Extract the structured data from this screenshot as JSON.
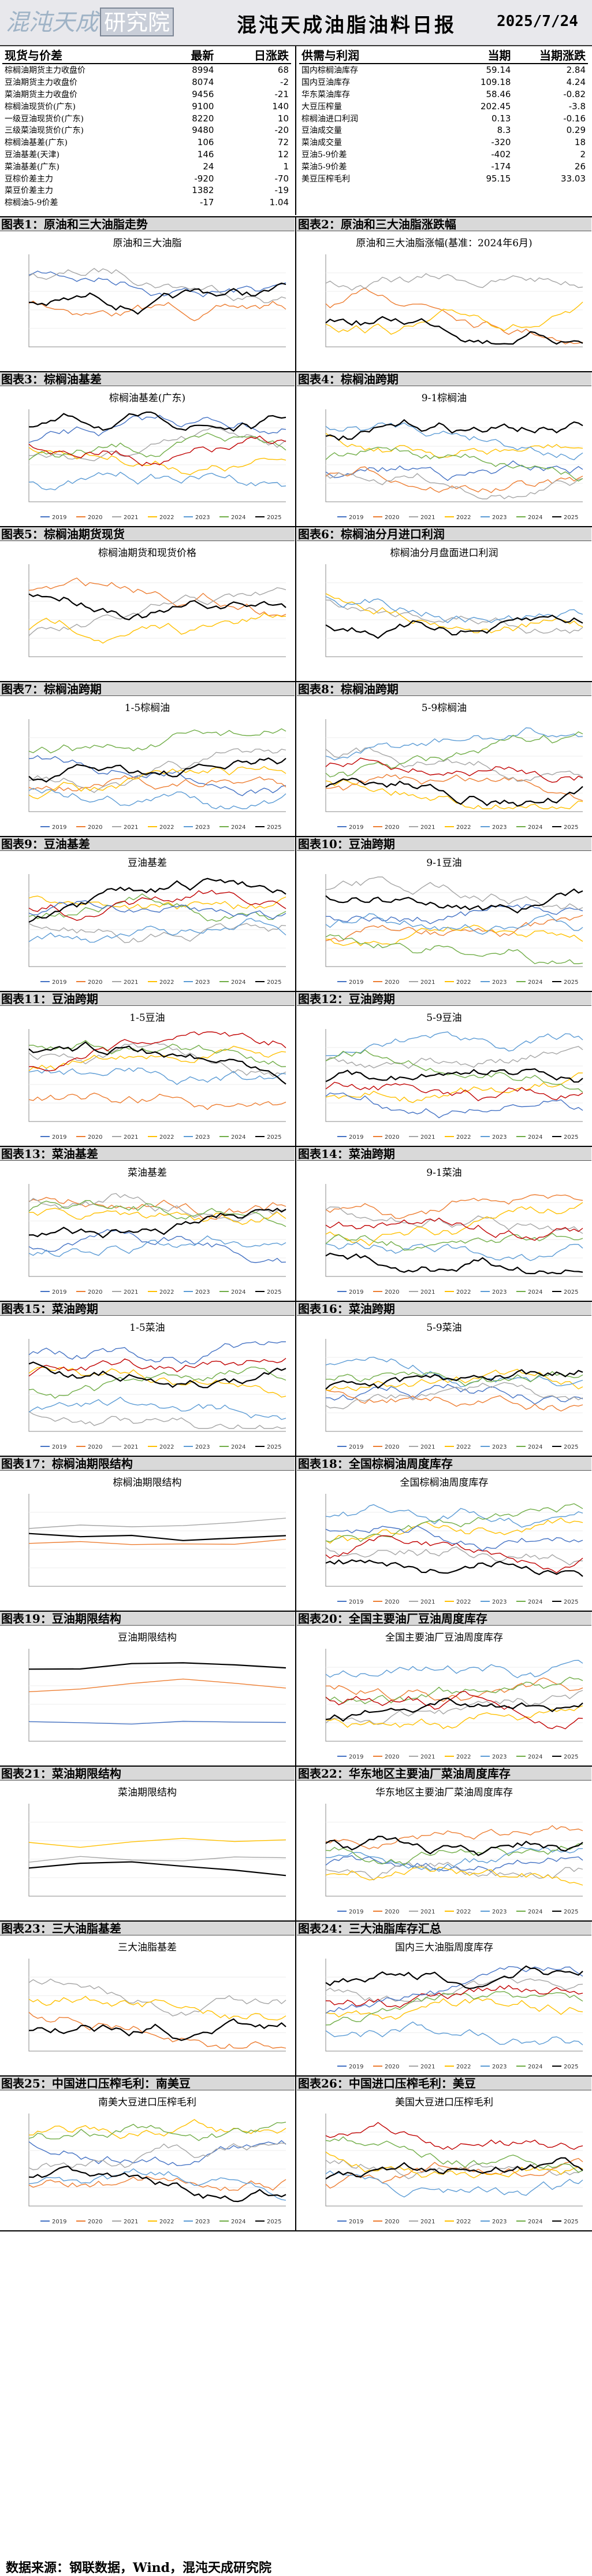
{
  "header": {
    "logo_text": "混沌天成研究院",
    "title": "混沌天成油脂油料日报",
    "date": "2025/7/24"
  },
  "spot_table": {
    "headers": [
      "现货与价差",
      "最新",
      "日涨跌"
    ],
    "rows": [
      [
        "棕榈油期货主力收盘价",
        "8994",
        "68"
      ],
      [
        "豆油期货主力收盘价",
        "8074",
        "-2"
      ],
      [
        "菜油期货主力收盘价",
        "9456",
        "-21"
      ],
      [
        "棕榈油现货价(广东)",
        "9100",
        "140"
      ],
      [
        "一级豆油现货价(广东)",
        "8220",
        "10"
      ],
      [
        "三级菜油现货价(广东)",
        "9480",
        "-20"
      ],
      [
        "棕榈油基差(广东)",
        "106",
        "72"
      ],
      [
        "豆油基差(天津)",
        "146",
        "12"
      ],
      [
        "菜油基差(广东)",
        "24",
        "1"
      ],
      [
        "豆棕价差主力",
        "-920",
        "-70"
      ],
      [
        "菜豆价差主力",
        "1382",
        "-19"
      ],
      [
        "棕榈油5-9价差",
        "-17",
        "1.04"
      ]
    ]
  },
  "supply_table": {
    "headers": [
      "供需与利润",
      "当期",
      "当期涨跌"
    ],
    "rows": [
      [
        "国内棕榈油库存",
        "59.14",
        "2.84"
      ],
      [
        "国内豆油库存",
        "109.18",
        "4.24"
      ],
      [
        "华东菜油库存",
        "58.46",
        "-0.82"
      ],
      [
        "大豆压榨量",
        "202.45",
        "-3.8"
      ],
      [
        "棕榈油进口利润",
        "0.13",
        "-0.16"
      ],
      [
        "豆油成交量",
        "8.3",
        "0.29"
      ],
      [
        "菜油成交量",
        "-320",
        "18"
      ],
      [
        "豆油5-9价差",
        "-402",
        "2"
      ],
      [
        "菜油5-9价差",
        "-174",
        "26"
      ],
      [
        "美豆压榨毛利",
        "95.15",
        "33.03"
      ]
    ]
  },
  "figures": [
    {
      "label": "图表1：原油和三大油脂走势",
      "title": "原油和三大油脂"
    },
    {
      "label": "图表2：原油和三大油脂涨跌幅",
      "title": "原油和三大油脂涨幅(基准：2024年6月)"
    },
    {
      "label": "图表3：棕榈油基差",
      "title": "棕榈油基差(广东)"
    },
    {
      "label": "图表4：棕榈油跨期",
      "title": "9-1棕榈油"
    },
    {
      "label": "图表5：棕榈油期货现货",
      "title": "棕榈油期货和现货价格"
    },
    {
      "label": "图表6：棕榈油分月进口利润",
      "title": "棕榈油分月盘面进口利润"
    },
    {
      "label": "图表7：棕榈油跨期",
      "title": "1-5棕榈油"
    },
    {
      "label": "图表8：棕榈油跨期",
      "title": "5-9棕榈油"
    },
    {
      "label": "图表9：豆油基差",
      "title": "豆油基差"
    },
    {
      "label": "图表10：豆油跨期",
      "title": "9-1豆油"
    },
    {
      "label": "图表11：豆油跨期",
      "title": "1-5豆油"
    },
    {
      "label": "图表12：豆油跨期",
      "title": "5-9豆油"
    },
    {
      "label": "图表13：菜油基差",
      "title": "菜油基差"
    },
    {
      "label": "图表14：菜油跨期",
      "title": "9-1菜油"
    },
    {
      "label": "图表15：菜油跨期",
      "title": "1-5菜油"
    },
    {
      "label": "图表16：菜油跨期",
      "title": "5-9菜油"
    },
    {
      "label": "图表17：棕榈油期限结构",
      "title": "棕榈油期限结构"
    },
    {
      "label": "图表18：全国棕榈油周度库存",
      "title": "全国棕榈油周度库存"
    },
    {
      "label": "图表19：豆油期限结构",
      "title": "豆油期限结构"
    },
    {
      "label": "图表20：全国主要油厂豆油周度库存",
      "title": "全国主要油厂豆油周度库存"
    },
    {
      "label": "图表21：菜油期限结构",
      "title": "菜油期限结构"
    },
    {
      "label": "图表22：华东地区主要油厂菜油周度库存",
      "title": "华东地区主要油厂菜油周度库存"
    },
    {
      "label": "图表23：三大油脂基差",
      "title": "三大油脂基差"
    },
    {
      "label": "图表24：三大油脂库存汇总",
      "title": "国内三大油脂周度库存"
    },
    {
      "label": "图表25：中国进口压榨毛利：南美豆",
      "title": "南美大豆进口压榨毛利"
    },
    {
      "label": "图表26：中国进口压榨毛利：美豆",
      "title": "美国大豆进口压榨毛利"
    }
  ],
  "year_legend": [
    "2019",
    "2020",
    "2021",
    "2022",
    "2023",
    "2024",
    "2025"
  ],
  "year_colors": [
    "#4472c4",
    "#ed7d31",
    "#a5a5a5",
    "#ffc000",
    "#5b9bd5",
    "#70ad47",
    "#c00000"
  ],
  "footer": "数据来源：钢联数据，Wind，混沌天成研究院"
}
